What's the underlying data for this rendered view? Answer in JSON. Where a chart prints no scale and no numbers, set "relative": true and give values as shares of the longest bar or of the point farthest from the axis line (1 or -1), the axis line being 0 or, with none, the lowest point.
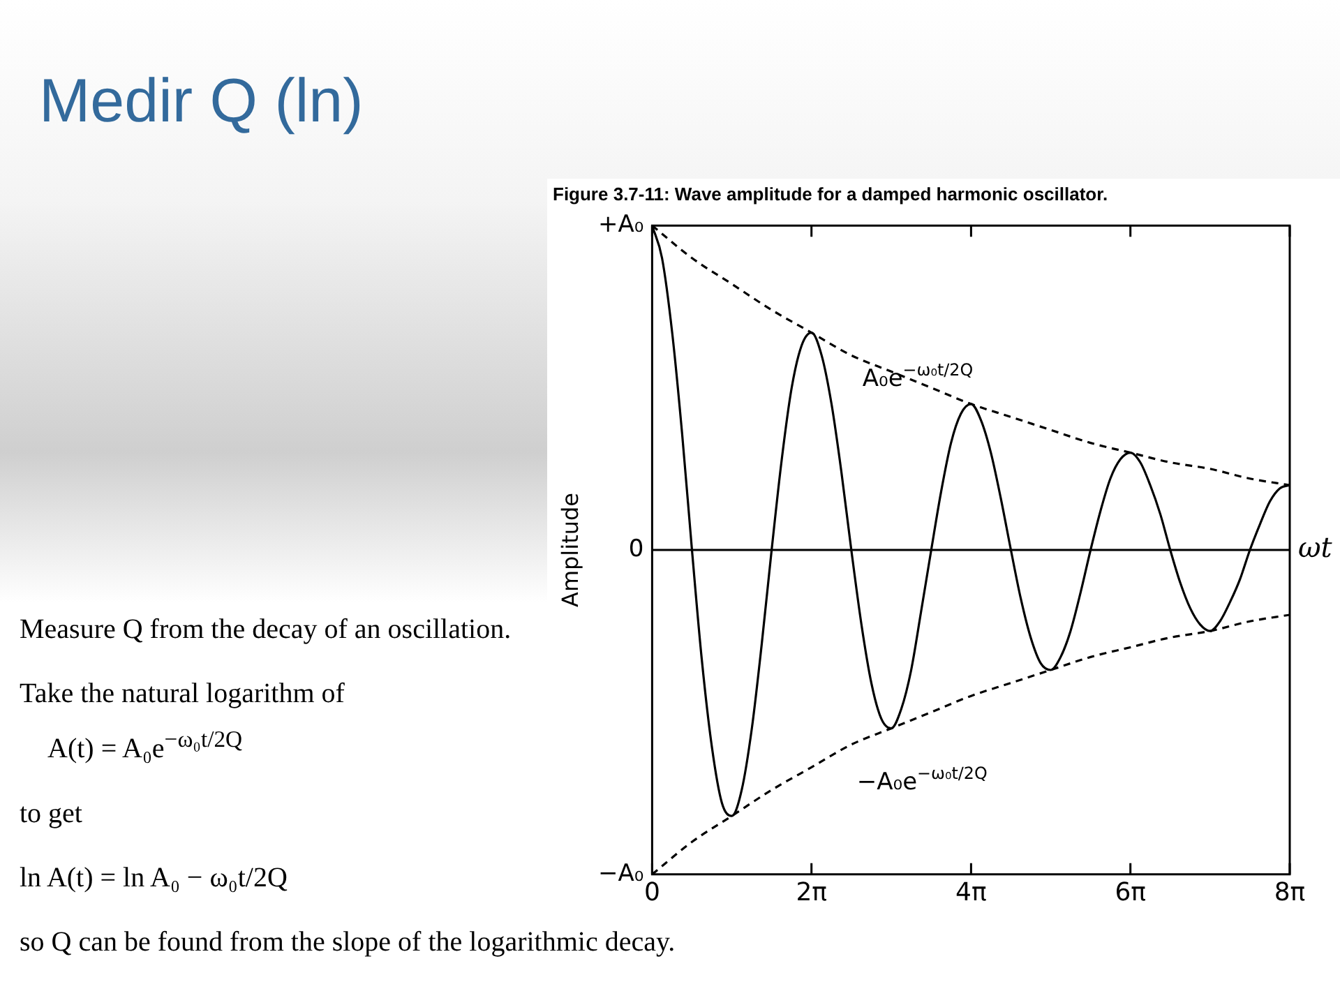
{
  "chart_data": {
    "type": "line",
    "title": "Figure 3.7-11: Wave amplitude for a damped harmonic oscillator.",
    "xlabel": "ωt",
    "ylabel": "Amplitude",
    "x": [
      0,
      0.39,
      0.79,
      1.18,
      1.57,
      1.96,
      2.36,
      2.75,
      3.14,
      3.53,
      3.93,
      4.32,
      4.71,
      5.11,
      5.5,
      5.89,
      6.28,
      6.68,
      7.07,
      7.46,
      7.85,
      8.25,
      8.64,
      9.03,
      9.42,
      9.82,
      10.21,
      10.6,
      11.0,
      11.39,
      11.78,
      12.17,
      12.57,
      12.96,
      13.35,
      13.74,
      14.14,
      14.53,
      14.92,
      15.32,
      15.71,
      16.1,
      16.49,
      16.89,
      17.28,
      17.67,
      18.06,
      18.46,
      18.85,
      19.24,
      19.63,
      20.03,
      20.42,
      20.81,
      21.21,
      21.6,
      21.99,
      22.38,
      22.78,
      23.17,
      23.56,
      23.96,
      24.35,
      24.74,
      25.13
    ],
    "series": [
      {
        "color": "#000000",
        "line_style": "solid",
        "values": [
          1.0,
          0.9,
          0.67,
          0.36,
          0,
          -0.34,
          -0.61,
          -0.78,
          -0.82,
          -0.74,
          -0.55,
          -0.29,
          0,
          0.28,
          0.5,
          0.63,
          0.67,
          0.6,
          0.45,
          0.24,
          0,
          -0.23,
          -0.41,
          -0.52,
          -0.55,
          -0.49,
          -0.37,
          -0.19,
          0,
          0.18,
          0.33,
          0.42,
          0.45,
          0.4,
          0.3,
          0.16,
          0,
          -0.15,
          -0.27,
          -0.35,
          -0.37,
          -0.33,
          -0.25,
          -0.13,
          0,
          0.12,
          0.22,
          0.28,
          0.3,
          0.27,
          0.2,
          0.11,
          0,
          -0.1,
          -0.18,
          -0.23,
          -0.25,
          -0.22,
          -0.16,
          -0.09,
          0,
          0.08,
          0.15,
          0.19,
          0.2
        ]
      },
      {
        "name": "A₀e$^{−ω₀t/2Q}$",
        "color": "#000000",
        "line_style": "dashed",
        "x": [
          0,
          1.57,
          3.14,
          4.71,
          6.28,
          7.85,
          9.42,
          11.0,
          12.57,
          14.14,
          15.71,
          17.28,
          18.85,
          20.42,
          21.99,
          23.56,
          25.13
        ],
        "values": [
          1.0,
          0.9,
          0.82,
          0.74,
          0.67,
          0.6,
          0.55,
          0.5,
          0.45,
          0.41,
          0.37,
          0.33,
          0.3,
          0.27,
          0.25,
          0.22,
          0.2
        ]
      },
      {
        "name": "−A₀e$^{−ω₀t/2Q}$",
        "color": "#000000",
        "line_style": "dashed",
        "x": [
          0,
          1.57,
          3.14,
          4.71,
          6.28,
          7.85,
          9.42,
          11.0,
          12.57,
          14.14,
          15.71,
          17.28,
          18.85,
          20.42,
          21.99,
          23.56,
          25.13
        ],
        "values": [
          -1.0,
          -0.9,
          -0.82,
          -0.74,
          -0.67,
          -0.6,
          -0.55,
          -0.5,
          -0.45,
          -0.41,
          -0.37,
          -0.33,
          -0.3,
          -0.27,
          -0.25,
          -0.22,
          -0.2
        ]
      }
    ],
    "relative": true,
    "xlim": [
      0,
      25.13
    ],
    "xticks": [
      0,
      {
        "value": 6.28,
        "label": "2π"
      },
      {
        "value": 12.57,
        "label": "4π"
      },
      {
        "value": 18.85,
        "label": "6π"
      },
      {
        "value": 25.13,
        "label": "8π"
      }
    ],
    "ref_lines": [
      {
        "axis": "y",
        "value": 0
      }
    ],
    "marker": "none",
    "grid": false,
    "legend": false,
    "annotations": [
      "Medir Q (ln)",
      "Measure Q from the decay of an oscillation.",
      "Take the natural logarithm of",
      "A(t) = A₀e$^{−ω₀t/2Q}$",
      "to get",
      "ln A(t) = ln A₀ − ω₀t/2Q",
      "so Q can be found from the slope of the logarithmic decay.",
      "+A₀",
      "0",
      "−A₀"
    ]
  }
}
